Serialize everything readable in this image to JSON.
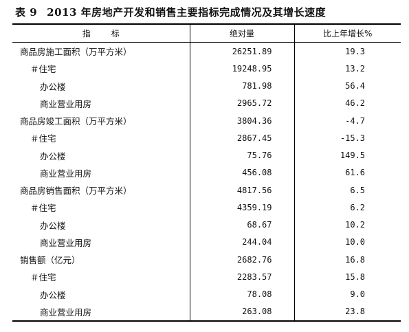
{
  "title": {
    "number": "表 9",
    "text": "2013 年房地产开发和销售主要指标完成情况及其增长速度"
  },
  "header": {
    "indicator_a": "指",
    "indicator_b": "标",
    "absolute": "绝对量",
    "growth": "比上年增长%"
  },
  "rows": [
    {
      "label": "商品房施工面积（万平方米）",
      "value": "26251.89",
      "growth": "19.3"
    },
    {
      "label": "＃住宅",
      "value": "19248.95",
      "growth": "13.2"
    },
    {
      "label": "办公楼",
      "value": "781.98",
      "growth": "56.4"
    },
    {
      "label": "商业营业用房",
      "value": "2965.72",
      "growth": "46.2"
    },
    {
      "label": "商品房竣工面积（万平方米）",
      "value": "3804.36",
      "growth": "-4.7"
    },
    {
      "label": "＃住宅",
      "value": "2867.45",
      "growth": "-15.3"
    },
    {
      "label": "办公楼",
      "value": "75.76",
      "growth": "149.5"
    },
    {
      "label": "商业营业用房",
      "value": "456.08",
      "growth": "61.6"
    },
    {
      "label": "商品房销售面积（万平方米）",
      "value": "4817.56",
      "growth": "6.5"
    },
    {
      "label": "＃住宅",
      "value": "4359.19",
      "growth": "6.2"
    },
    {
      "label": "办公楼",
      "value": "68.67",
      "growth": "10.2"
    },
    {
      "label": "商业营业用房",
      "value": "244.04",
      "growth": "10.0"
    },
    {
      "label": "销售额（亿元）",
      "value": "2682.76",
      "growth": "16.8"
    },
    {
      "label": "＃住宅",
      "value": "2283.57",
      "growth": "15.8"
    },
    {
      "label": "办公楼",
      "value": "78.08",
      "growth": "9.0"
    },
    {
      "label": "商业营业用房",
      "value": "263.08",
      "growth": "23.8"
    }
  ]
}
